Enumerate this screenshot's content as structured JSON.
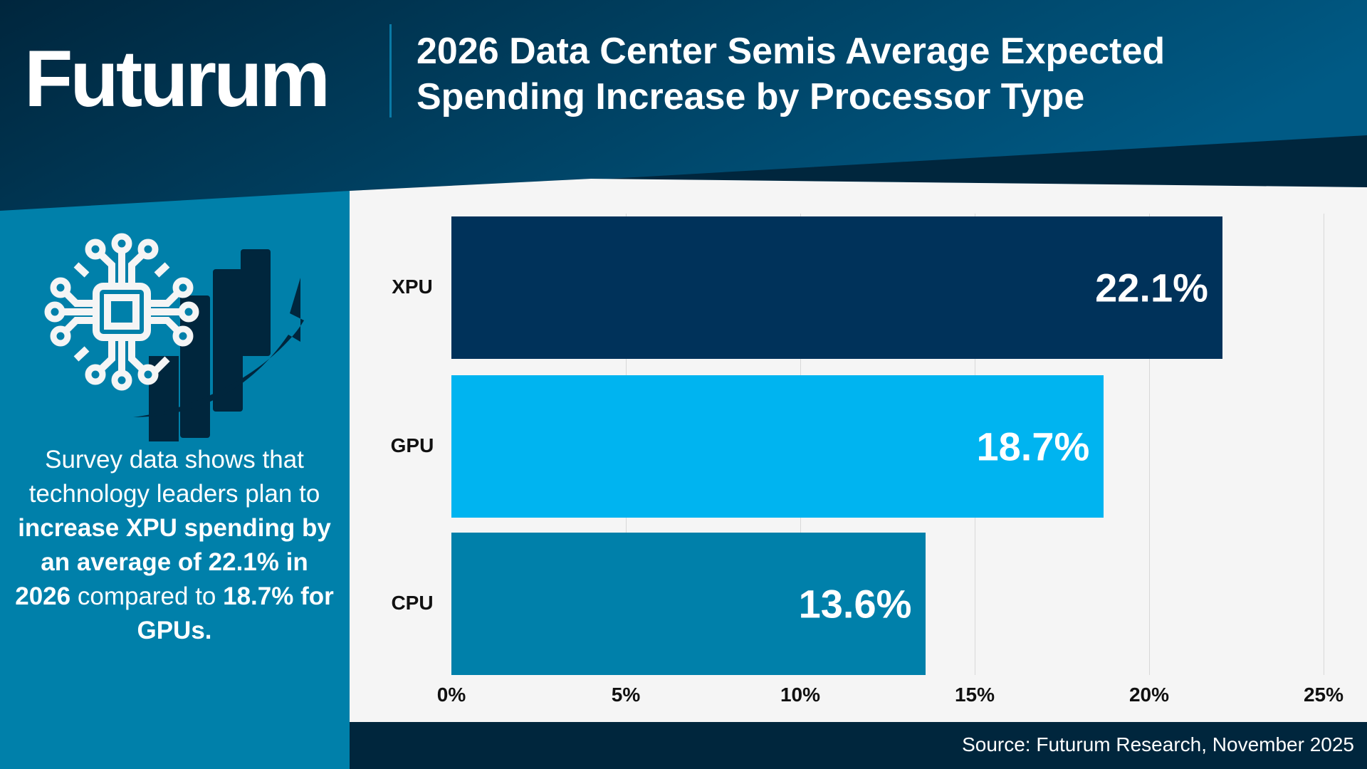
{
  "brand": {
    "logo": "Futurum"
  },
  "header": {
    "title_line1": "2026 Data Center Semis Average Expected",
    "title_line2": "Spending Increase by Processor Type"
  },
  "sidebar": {
    "icon": "chip-with-growth-chart-icon",
    "text_parts": [
      "Survey data shows that technology leaders plan to ",
      "increase XPU spending by an average of 22.1% in 2026",
      " compared to ",
      "18.7% for GPUs."
    ]
  },
  "footer": {
    "source": "Source: Futurum Research, November 2025"
  },
  "colors": {
    "header_dark": "#00263d",
    "header_light": "#005a85",
    "sidebar": "#0080aa",
    "xpu": "#00325a",
    "gpu": "#00b4f0",
    "cpu": "#0080aa"
  },
  "chart_data": {
    "type": "bar",
    "orientation": "horizontal",
    "title": "2026 Data Center Semis Average Expected Spending Increase by Processor Type",
    "categories": [
      "XPU",
      "GPU",
      "CPU"
    ],
    "values": [
      22.1,
      18.7,
      13.6
    ],
    "value_labels": [
      "22.1%",
      "18.7%",
      "13.6%"
    ],
    "xlim": [
      0,
      25
    ],
    "ticks": [
      "0%",
      "5%",
      "10%",
      "15%",
      "20%",
      "25%"
    ],
    "grid": true,
    "xlabel": "",
    "ylabel": ""
  }
}
